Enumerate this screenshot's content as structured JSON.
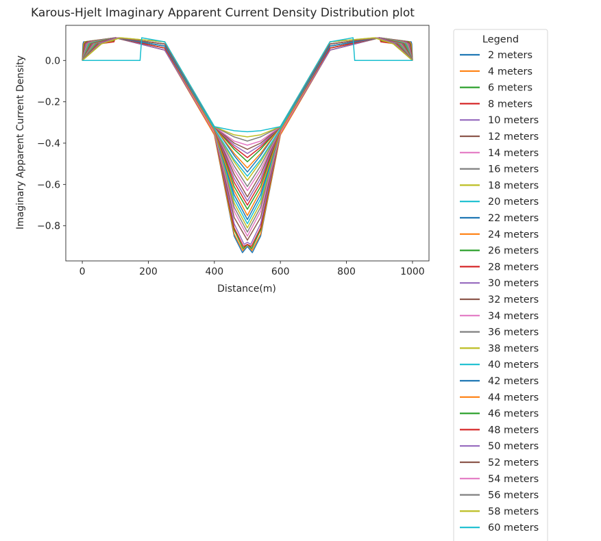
{
  "chart_data": {
    "type": "line",
    "title": "Karous-Hjelt Imaginary Apparent Current Density Distribution plot",
    "xlabel": "Distance(m)",
    "ylabel": "Imaginary Apparent Current Density",
    "xlim": [
      -50,
      1050
    ],
    "ylim": [
      -0.97,
      0.17
    ],
    "xticks": [
      0,
      200,
      400,
      600,
      800,
      1000
    ],
    "xtick_labels": [
      "0",
      "200",
      "400",
      "600",
      "800",
      "1000"
    ],
    "yticks": [
      0.0,
      -0.2,
      -0.4,
      -0.6,
      -0.8
    ],
    "ytick_labels": [
      "0.0",
      "−0.2",
      "−0.4",
      "−0.6",
      "−0.8"
    ],
    "grid": false,
    "legend": {
      "title": "Legend",
      "placement": "outside-right"
    },
    "colors": [
      "#1f77b4",
      "#ff7f0e",
      "#2ca02c",
      "#d62728",
      "#9467bd",
      "#8c564b",
      "#e377c2",
      "#7f7f7f",
      "#bcbd22",
      "#17becf"
    ],
    "series": [
      {
        "name": "2 meters",
        "x": [
          0,
          2,
          4,
          100,
          250,
          400,
          460,
          485,
          500,
          515,
          540,
          600,
          750,
          900,
          996,
          998,
          1000
        ],
        "y": [
          0.0,
          0.08,
          0.09,
          0.11,
          0.05,
          -0.36,
          -0.85,
          -0.93,
          -0.9,
          -0.93,
          -0.85,
          -0.36,
          0.05,
          0.11,
          0.09,
          0.08,
          0.0
        ]
      },
      {
        "name": "4 meters",
        "x": [
          0,
          4,
          8,
          100,
          250,
          400,
          460,
          486,
          500,
          514,
          540,
          600,
          750,
          900,
          992,
          996,
          1000
        ],
        "y": [
          0.0,
          0.08,
          0.09,
          0.11,
          0.05,
          -0.36,
          -0.84,
          -0.92,
          -0.89,
          -0.92,
          -0.84,
          -0.36,
          0.05,
          0.11,
          0.09,
          0.08,
          0.0
        ]
      },
      {
        "name": "6 meters",
        "x": [
          0,
          6,
          12,
          100,
          250,
          400,
          460,
          487,
          500,
          513,
          540,
          600,
          750,
          900,
          988,
          994,
          1000
        ],
        "y": [
          0.0,
          0.08,
          0.09,
          0.11,
          0.05,
          -0.35,
          -0.82,
          -0.91,
          -0.89,
          -0.91,
          -0.82,
          -0.35,
          0.05,
          0.11,
          0.09,
          0.08,
          0.0
        ]
      },
      {
        "name": "8 meters",
        "x": [
          0,
          8,
          16,
          100,
          250,
          400,
          460,
          488,
          500,
          512,
          540,
          600,
          750,
          900,
          984,
          992,
          1000
        ],
        "y": [
          0.0,
          0.08,
          0.09,
          0.11,
          0.05,
          -0.35,
          -0.81,
          -0.9,
          -0.89,
          -0.9,
          -0.81,
          -0.35,
          0.05,
          0.11,
          0.09,
          0.08,
          0.0
        ]
      },
      {
        "name": "10 meters",
        "x": [
          0,
          10,
          20,
          100,
          250,
          400,
          460,
          490,
          500,
          510,
          540,
          600,
          750,
          900,
          980,
          990,
          1000
        ],
        "y": [
          0.0,
          0.08,
          0.09,
          0.11,
          0.05,
          -0.35,
          -0.79,
          -0.89,
          -0.88,
          -0.89,
          -0.79,
          -0.35,
          0.05,
          0.11,
          0.09,
          0.08,
          0.0
        ]
      },
      {
        "name": "12 meters",
        "x": [
          0,
          12,
          24,
          100,
          250,
          400,
          460,
          500,
          540,
          600,
          750,
          900,
          976,
          988,
          1000
        ],
        "y": [
          0.0,
          0.08,
          0.09,
          0.11,
          0.06,
          -0.35,
          -0.76,
          -0.87,
          -0.76,
          -0.35,
          0.06,
          0.11,
          0.09,
          0.08,
          0.0
        ]
      },
      {
        "name": "14 meters",
        "x": [
          0,
          14,
          28,
          100,
          250,
          400,
          460,
          500,
          540,
          600,
          750,
          900,
          972,
          986,
          1000
        ],
        "y": [
          0.0,
          0.08,
          0.09,
          0.11,
          0.06,
          -0.35,
          -0.73,
          -0.85,
          -0.73,
          -0.35,
          0.06,
          0.11,
          0.09,
          0.08,
          0.0
        ]
      },
      {
        "name": "16 meters",
        "x": [
          0,
          16,
          32,
          100,
          250,
          400,
          460,
          500,
          540,
          600,
          750,
          900,
          968,
          984,
          1000
        ],
        "y": [
          0.0,
          0.08,
          0.09,
          0.11,
          0.06,
          -0.34,
          -0.71,
          -0.83,
          -0.71,
          -0.34,
          0.06,
          0.11,
          0.09,
          0.08,
          0.0
        ]
      },
      {
        "name": "18 meters",
        "x": [
          0,
          18,
          36,
          100,
          250,
          400,
          460,
          500,
          540,
          600,
          750,
          900,
          964,
          982,
          1000
        ],
        "y": [
          0.0,
          0.08,
          0.09,
          0.11,
          0.06,
          -0.34,
          -0.69,
          -0.81,
          -0.69,
          -0.34,
          0.06,
          0.11,
          0.09,
          0.08,
          0.0
        ]
      },
      {
        "name": "20 meters",
        "x": [
          0,
          20,
          40,
          100,
          250,
          400,
          460,
          500,
          540,
          600,
          750,
          900,
          960,
          980,
          1000
        ],
        "y": [
          0.0,
          0.08,
          0.09,
          0.11,
          0.06,
          -0.34,
          -0.67,
          -0.79,
          -0.67,
          -0.34,
          0.06,
          0.11,
          0.09,
          0.08,
          0.0
        ]
      },
      {
        "name": "22 meters",
        "x": [
          0,
          22,
          44,
          100,
          250,
          400,
          460,
          500,
          540,
          600,
          750,
          900,
          956,
          978,
          1000
        ],
        "y": [
          0.0,
          0.08,
          0.09,
          0.11,
          0.06,
          -0.34,
          -0.65,
          -0.77,
          -0.65,
          -0.34,
          0.06,
          0.11,
          0.09,
          0.08,
          0.0
        ]
      },
      {
        "name": "24 meters",
        "x": [
          0,
          24,
          48,
          100,
          250,
          400,
          460,
          500,
          540,
          600,
          750,
          900,
          952,
          976,
          1000
        ],
        "y": [
          0.0,
          0.08,
          0.09,
          0.11,
          0.06,
          -0.34,
          -0.63,
          -0.75,
          -0.63,
          -0.34,
          0.06,
          0.11,
          0.09,
          0.08,
          0.0
        ]
      },
      {
        "name": "26 meters",
        "x": [
          0,
          26,
          52,
          100,
          250,
          400,
          460,
          500,
          540,
          600,
          750,
          900,
          948,
          974,
          1000
        ],
        "y": [
          0.0,
          0.08,
          0.09,
          0.11,
          0.06,
          -0.33,
          -0.61,
          -0.72,
          -0.61,
          -0.33,
          0.06,
          0.11,
          0.09,
          0.08,
          0.0
        ]
      },
      {
        "name": "28 meters",
        "x": [
          0,
          28,
          56,
          100,
          250,
          400,
          460,
          500,
          540,
          600,
          750,
          900,
          944,
          972,
          1000
        ],
        "y": [
          0.0,
          0.08,
          0.09,
          0.11,
          0.06,
          -0.33,
          -0.59,
          -0.7,
          -0.59,
          -0.33,
          0.06,
          0.11,
          0.09,
          0.08,
          0.0
        ]
      },
      {
        "name": "30 meters",
        "x": [
          0,
          30,
          60,
          100,
          250,
          400,
          460,
          500,
          540,
          600,
          750,
          900,
          940,
          970,
          1000
        ],
        "y": [
          0.0,
          0.08,
          0.09,
          0.11,
          0.07,
          -0.33,
          -0.57,
          -0.68,
          -0.57,
          -0.33,
          0.07,
          0.11,
          0.09,
          0.08,
          0.0
        ]
      },
      {
        "name": "32 meters",
        "x": [
          0,
          32,
          64,
          100,
          250,
          400,
          460,
          500,
          540,
          600,
          750,
          900,
          936,
          968,
          1000
        ],
        "y": [
          0.0,
          0.08,
          0.09,
          0.11,
          0.07,
          -0.33,
          -0.55,
          -0.66,
          -0.55,
          -0.33,
          0.07,
          0.11,
          0.09,
          0.08,
          0.0
        ]
      },
      {
        "name": "34 meters",
        "x": [
          0,
          34,
          68,
          100,
          250,
          400,
          460,
          500,
          540,
          600,
          750,
          900,
          932,
          966,
          1000
        ],
        "y": [
          0.0,
          0.08,
          0.09,
          0.11,
          0.07,
          -0.33,
          -0.53,
          -0.63,
          -0.53,
          -0.33,
          0.07,
          0.11,
          0.09,
          0.08,
          0.0
        ]
      },
      {
        "name": "36 meters",
        "x": [
          0,
          36,
          72,
          100,
          250,
          400,
          460,
          500,
          540,
          600,
          750,
          900,
          928,
          964,
          1000
        ],
        "y": [
          0.0,
          0.08,
          0.09,
          0.11,
          0.07,
          -0.33,
          -0.51,
          -0.61,
          -0.51,
          -0.33,
          0.07,
          0.11,
          0.09,
          0.08,
          0.0
        ]
      },
      {
        "name": "38 meters",
        "x": [
          0,
          38,
          76,
          100,
          250,
          400,
          460,
          500,
          540,
          600,
          750,
          900,
          924,
          962,
          1000
        ],
        "y": [
          0.0,
          0.08,
          0.09,
          0.11,
          0.07,
          -0.33,
          -0.49,
          -0.58,
          -0.49,
          -0.33,
          0.07,
          0.11,
          0.09,
          0.08,
          0.0
        ]
      },
      {
        "name": "40 meters",
        "x": [
          0,
          40,
          80,
          100,
          250,
          400,
          460,
          500,
          540,
          600,
          750,
          900,
          920,
          960,
          1000
        ],
        "y": [
          0.0,
          0.08,
          0.09,
          0.11,
          0.07,
          -0.33,
          -0.48,
          -0.56,
          -0.48,
          -0.33,
          0.07,
          0.11,
          0.09,
          0.08,
          0.0
        ]
      },
      {
        "name": "42 meters",
        "x": [
          0,
          42,
          84,
          100,
          250,
          400,
          460,
          500,
          540,
          600,
          750,
          900,
          916,
          958,
          1000
        ],
        "y": [
          0.0,
          0.08,
          0.09,
          0.11,
          0.07,
          -0.32,
          -0.46,
          -0.54,
          -0.46,
          -0.32,
          0.07,
          0.11,
          0.09,
          0.08,
          0.0
        ]
      },
      {
        "name": "44 meters",
        "x": [
          0,
          44,
          88,
          100,
          250,
          400,
          460,
          500,
          540,
          600,
          750,
          900,
          912,
          956,
          1000
        ],
        "y": [
          0.0,
          0.08,
          0.09,
          0.11,
          0.08,
          -0.32,
          -0.45,
          -0.52,
          -0.45,
          -0.32,
          0.08,
          0.11,
          0.09,
          0.08,
          0.0
        ]
      },
      {
        "name": "46 meters",
        "x": [
          0,
          46,
          92,
          100,
          250,
          400,
          460,
          500,
          540,
          600,
          750,
          900,
          908,
          954,
          1000
        ],
        "y": [
          0.0,
          0.08,
          0.09,
          0.11,
          0.08,
          -0.32,
          -0.43,
          -0.49,
          -0.43,
          -0.32,
          0.08,
          0.11,
          0.09,
          0.08,
          0.0
        ]
      },
      {
        "name": "48 meters",
        "x": [
          0,
          48,
          96,
          100,
          250,
          400,
          460,
          500,
          540,
          600,
          750,
          900,
          904,
          952,
          1000
        ],
        "y": [
          0.0,
          0.08,
          0.09,
          0.11,
          0.08,
          -0.32,
          -0.42,
          -0.47,
          -0.42,
          -0.32,
          0.08,
          0.11,
          0.09,
          0.08,
          0.0
        ]
      },
      {
        "name": "50 meters",
        "x": [
          0,
          50,
          100,
          250,
          400,
          460,
          500,
          540,
          600,
          750,
          900,
          950,
          1000
        ],
        "y": [
          0.0,
          0.08,
          0.11,
          0.08,
          -0.32,
          -0.41,
          -0.45,
          -0.41,
          -0.32,
          0.08,
          0.11,
          0.08,
          0.0
        ]
      },
      {
        "name": "52 meters",
        "x": [
          0,
          52,
          104,
          250,
          400,
          460,
          500,
          540,
          600,
          750,
          896,
          948,
          1000
        ],
        "y": [
          0.0,
          0.08,
          0.11,
          0.08,
          -0.32,
          -0.4,
          -0.43,
          -0.4,
          -0.32,
          0.08,
          0.11,
          0.08,
          0.0
        ]
      },
      {
        "name": "54 meters",
        "x": [
          0,
          54,
          108,
          250,
          400,
          460,
          500,
          540,
          600,
          750,
          892,
          946,
          1000
        ],
        "y": [
          0.0,
          0.08,
          0.11,
          0.09,
          -0.32,
          -0.39,
          -0.41,
          -0.39,
          -0.32,
          0.09,
          0.11,
          0.08,
          0.0
        ]
      },
      {
        "name": "56 meters",
        "x": [
          0,
          56,
          112,
          250,
          400,
          460,
          500,
          540,
          600,
          750,
          888,
          944,
          1000
        ],
        "y": [
          0.0,
          0.08,
          0.11,
          0.09,
          -0.32,
          -0.37,
          -0.39,
          -0.37,
          -0.32,
          0.09,
          0.11,
          0.08,
          0.0
        ]
      },
      {
        "name": "58 meters",
        "x": [
          0,
          58,
          116,
          250,
          400,
          460,
          500,
          540,
          600,
          750,
          884,
          942,
          1000
        ],
        "y": [
          0.0,
          0.08,
          0.11,
          0.09,
          -0.32,
          -0.36,
          -0.37,
          -0.36,
          -0.32,
          0.09,
          0.11,
          0.08,
          0.0
        ]
      },
      {
        "name": "60 meters",
        "x": [
          0,
          175,
          180,
          250,
          400,
          460,
          500,
          540,
          600,
          750,
          820,
          825,
          1000
        ],
        "y": [
          0.0,
          0.0,
          0.11,
          0.09,
          -0.32,
          -0.34,
          -0.345,
          -0.34,
          -0.32,
          0.09,
          0.11,
          0.0,
          0.0
        ]
      }
    ]
  }
}
